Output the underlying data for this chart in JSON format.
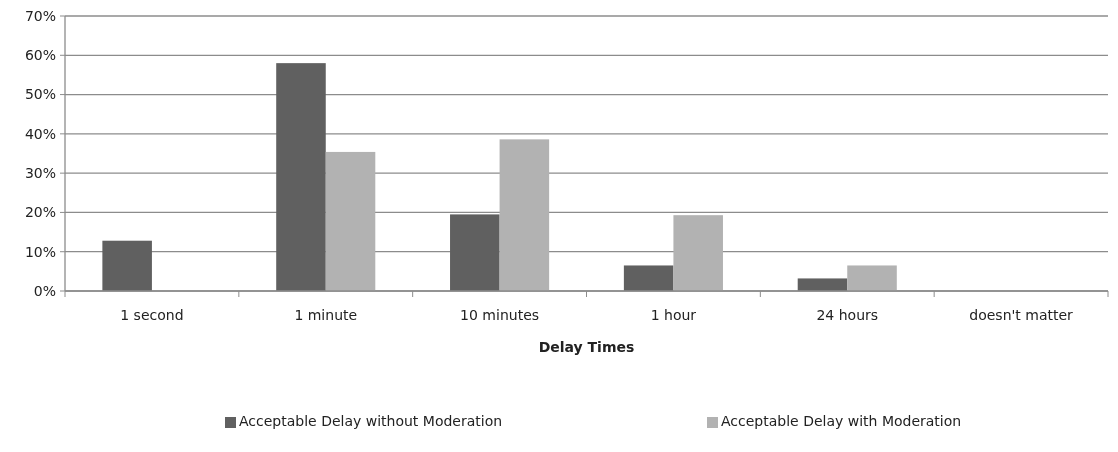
{
  "chart_data": {
    "type": "bar",
    "xlabel": "Delay Times",
    "categories": [
      "1 second",
      "1 minute",
      "10 minutes",
      "1 hour",
      "24 hours",
      "doesn't matter"
    ],
    "series": [
      {
        "name": "Acceptable Delay without Moderation",
        "color": "#606060",
        "values": [
          12.8,
          58,
          19.5,
          6.5,
          3.2,
          0
        ]
      },
      {
        "name": "Acceptable Delay with Moderation",
        "color": "#b2b2b2",
        "values": [
          0,
          35.4,
          38.6,
          19.3,
          6.5,
          0
        ]
      }
    ],
    "ylim": [
      0,
      70
    ],
    "yticks": [
      {
        "value": 0,
        "label": "0%"
      },
      {
        "value": 10,
        "label": "10%"
      },
      {
        "value": 20,
        "label": "20%"
      },
      {
        "value": 30,
        "label": "30%"
      },
      {
        "value": 40,
        "label": "40%"
      },
      {
        "value": 50,
        "label": "50%"
      },
      {
        "value": 60,
        "label": "60%"
      },
      {
        "value": 70,
        "label": "70%"
      }
    ],
    "grid": "y",
    "legend": "bottom"
  }
}
